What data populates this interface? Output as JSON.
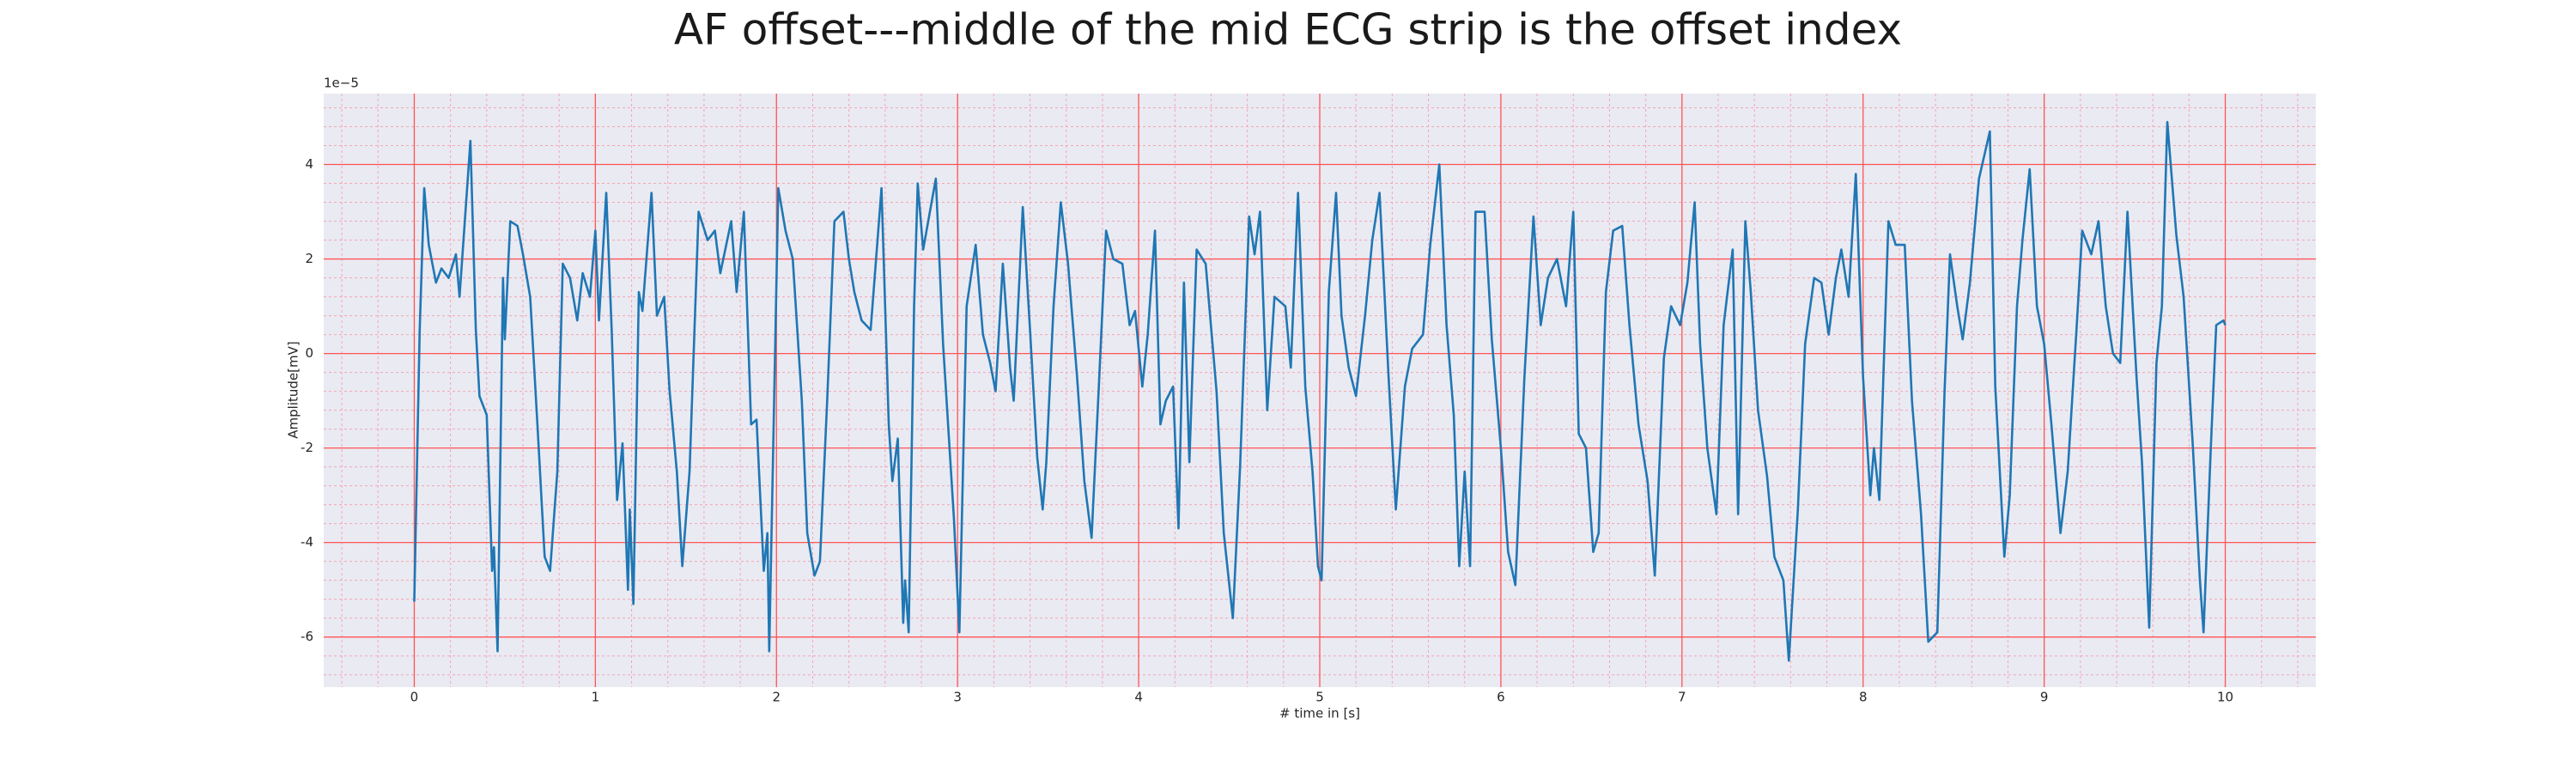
{
  "chart_data": {
    "type": "line",
    "title": "AF offset---middle of the mid ECG strip is the offset index",
    "xlabel": "# time in [s]",
    "ylabel": "Amplitude[mV]",
    "y_offset_label": "1e−5",
    "xlim": [
      -0.5,
      10.5
    ],
    "ylim": [
      -7.06,
      5.5
    ],
    "xticks": [
      0,
      1,
      2,
      3,
      4,
      5,
      6,
      7,
      8,
      9,
      10
    ],
    "yticks": [
      -6,
      -4,
      -2,
      0,
      2,
      4
    ],
    "grid": true,
    "grid_color": "#ff5555",
    "minor_grid_color": "#f4a6b4",
    "background": "#eaeaf2",
    "series": [
      {
        "name": "ECG",
        "color": "#1f77b4",
        "x": [
          0,
          0.03,
          0.055,
          0.08,
          0.12,
          0.15,
          0.19,
          0.23,
          0.25,
          0.31,
          0.34,
          0.36,
          0.4,
          0.43,
          0.44,
          0.46,
          0.49,
          0.5,
          0.53,
          0.57,
          0.6,
          0.64,
          0.68,
          0.72,
          0.75,
          0.79,
          0.82,
          0.86,
          0.9,
          0.93,
          0.97,
          1.0,
          1.02,
          1.06,
          1.09,
          1.12,
          1.15,
          1.18,
          1.19,
          1.21,
          1.24,
          1.26,
          1.31,
          1.34,
          1.38,
          1.41,
          1.45,
          1.48,
          1.52,
          1.57,
          1.62,
          1.66,
          1.69,
          1.75,
          1.78,
          1.82,
          1.86,
          1.89,
          1.93,
          1.95,
          1.96,
          2.01,
          2.05,
          2.09,
          2.14,
          2.17,
          2.21,
          2.24,
          2.28,
          2.32,
          2.37,
          2.4,
          2.43,
          2.47,
          2.52,
          2.58,
          2.62,
          2.64,
          2.67,
          2.7,
          2.71,
          2.73,
          2.76,
          2.78,
          2.81,
          2.88,
          2.92,
          2.98,
          3.01,
          3.05,
          3.1,
          3.14,
          3.18,
          3.21,
          3.25,
          3.29,
          3.31,
          3.36,
          3.4,
          3.44,
          3.47,
          3.49,
          3.53,
          3.57,
          3.61,
          3.66,
          3.7,
          3.74,
          3.78,
          3.82,
          3.86,
          3.91,
          3.95,
          3.98,
          4.02,
          4.05,
          4.09,
          4.12,
          4.15,
          4.19,
          4.22,
          4.25,
          4.28,
          4.32,
          4.37,
          4.43,
          4.47,
          4.52,
          4.56,
          4.61,
          4.64,
          4.67,
          4.71,
          4.75,
          4.81,
          4.84,
          4.88,
          4.92,
          4.96,
          4.99,
          5.01,
          5.05,
          5.09,
          5.12,
          5.16,
          5.2,
          5.25,
          5.29,
          5.33,
          5.38,
          5.42,
          5.47,
          5.51,
          5.57,
          5.61,
          5.66,
          5.7,
          5.74,
          5.77,
          5.8,
          5.83,
          5.86,
          5.91,
          5.95,
          6.0,
          6.04,
          6.08,
          6.13,
          6.18,
          6.22,
          6.26,
          6.31,
          6.36,
          6.4,
          6.43,
          6.47,
          6.51,
          6.54,
          6.58,
          6.62,
          6.67,
          6.71,
          6.76,
          6.81,
          6.85,
          6.9,
          6.94,
          6.99,
          7.03,
          7.07,
          7.1,
          7.14,
          7.19,
          7.23,
          7.28,
          7.31,
          7.35,
          7.38,
          7.42,
          7.47,
          7.51,
          7.56,
          7.59,
          7.64,
          7.68,
          7.73,
          7.77,
          7.81,
          7.85,
          7.88,
          7.92,
          7.96,
          8.0,
          8.04,
          8.06,
          8.09,
          8.14,
          8.18,
          8.23,
          8.27,
          8.32,
          8.36,
          8.41,
          8.45,
          8.48,
          8.52,
          8.55,
          8.59,
          8.64,
          8.7,
          8.73,
          8.78,
          8.81,
          8.85,
          8.88,
          8.92,
          8.96,
          9.0,
          9.04,
          9.09,
          9.13,
          9.18,
          9.21,
          9.26,
          9.3,
          9.34,
          9.38,
          9.42,
          9.46,
          9.51,
          9.54,
          9.58,
          9.62,
          9.65,
          9.68,
          9.73,
          9.77,
          9.82,
          9.86,
          9.88,
          9.92,
          9.95,
          9.99,
          10.0
        ],
        "values": [
          -5.25,
          0.5,
          3.5,
          2.3,
          1.5,
          1.8,
          1.6,
          2.1,
          1.2,
          4.5,
          0.5,
          -0.9,
          -1.3,
          -4.6,
          -4.1,
          -6.3,
          1.6,
          0.3,
          2.8,
          2.7,
          2.1,
          1.2,
          -1.5,
          -4.3,
          -4.6,
          -2.5,
          1.9,
          1.6,
          0.7,
          1.7,
          1.2,
          2.6,
          0.7,
          3.4,
          0.5,
          -3.1,
          -1.9,
          -5.0,
          -3.3,
          -5.3,
          1.3,
          0.9,
          3.4,
          0.8,
          1.2,
          -0.8,
          -2.5,
          -4.5,
          -2.5,
          3.0,
          2.4,
          2.6,
          1.7,
          2.8,
          1.3,
          3.0,
          -1.5,
          -1.4,
          -4.6,
          -3.8,
          -6.3,
          3.5,
          2.6,
          2.0,
          -1.0,
          -3.8,
          -4.7,
          -4.4,
          -1.0,
          2.8,
          3.0,
          2.0,
          1.3,
          0.7,
          0.5,
          3.5,
          -1.5,
          -2.7,
          -1.8,
          -5.7,
          -4.8,
          -5.9,
          1.0,
          3.6,
          2.2,
          3.7,
          0.2,
          -3.5,
          -5.9,
          1.0,
          2.3,
          0.4,
          -0.2,
          -0.8,
          1.9,
          -0.3,
          -1.0,
          3.1,
          0.5,
          -2.2,
          -3.3,
          -2.3,
          1.0,
          3.2,
          1.9,
          -0.5,
          -2.7,
          -3.9,
          -0.7,
          2.6,
          2.0,
          1.9,
          0.6,
          0.9,
          -0.7,
          0.4,
          2.6,
          -1.5,
          -1.0,
          -0.7,
          -3.7,
          1.5,
          -2.3,
          2.2,
          1.9,
          -0.8,
          -3.8,
          -5.6,
          -2.4,
          2.9,
          2.1,
          3.0,
          -1.2,
          1.2,
          1.0,
          -0.3,
          3.4,
          -0.7,
          -2.5,
          -4.5,
          -4.8,
          1.3,
          3.4,
          0.8,
          -0.3,
          -0.9,
          0.8,
          2.4,
          3.4,
          -0.5,
          -3.3,
          -0.7,
          0.1,
          0.4,
          2.3,
          4.0,
          0.6,
          -1.3,
          -4.5,
          -2.5,
          -4.5,
          3.0,
          3.0,
          0.3,
          -2.0,
          -4.2,
          -4.9,
          -0.5,
          2.9,
          0.6,
          1.6,
          2.0,
          1.0,
          3.0,
          -1.7,
          -2.0,
          -4.2,
          -3.8,
          1.3,
          2.6,
          2.7,
          0.6,
          -1.5,
          -2.7,
          -4.7,
          -0.1,
          1.0,
          0.6,
          1.5,
          3.2,
          0.2,
          -2.0,
          -3.4,
          0.6,
          2.2,
          -3.4,
          2.8,
          1.3,
          -1.2,
          -2.6,
          -4.3,
          -4.8,
          -6.5,
          -3.3,
          0.2,
          1.6,
          1.5,
          0.4,
          1.6,
          2.2,
          1.2,
          3.8,
          -0.5,
          -3.0,
          -2.0,
          -3.1,
          2.8,
          2.3,
          2.3,
          -1.0,
          -3.4,
          -6.1,
          -5.9,
          -0.8,
          2.1,
          1.0,
          0.3,
          1.5,
          3.7,
          4.7,
          -0.7,
          -4.3,
          -3.0,
          1.0,
          2.4,
          3.9,
          1.0,
          0.2,
          -1.5,
          -3.8,
          -2.5,
          0.6,
          2.6,
          2.1,
          2.8,
          1.0,
          0.0,
          -0.2,
          3.0,
          -0.5,
          -2.3,
          -5.8,
          -0.2,
          1.0,
          4.9,
          2.5,
          1.2,
          -1.9,
          -4.8,
          -5.9,
          -2.0,
          0.6,
          0.7,
          0.6
        ]
      }
    ]
  }
}
